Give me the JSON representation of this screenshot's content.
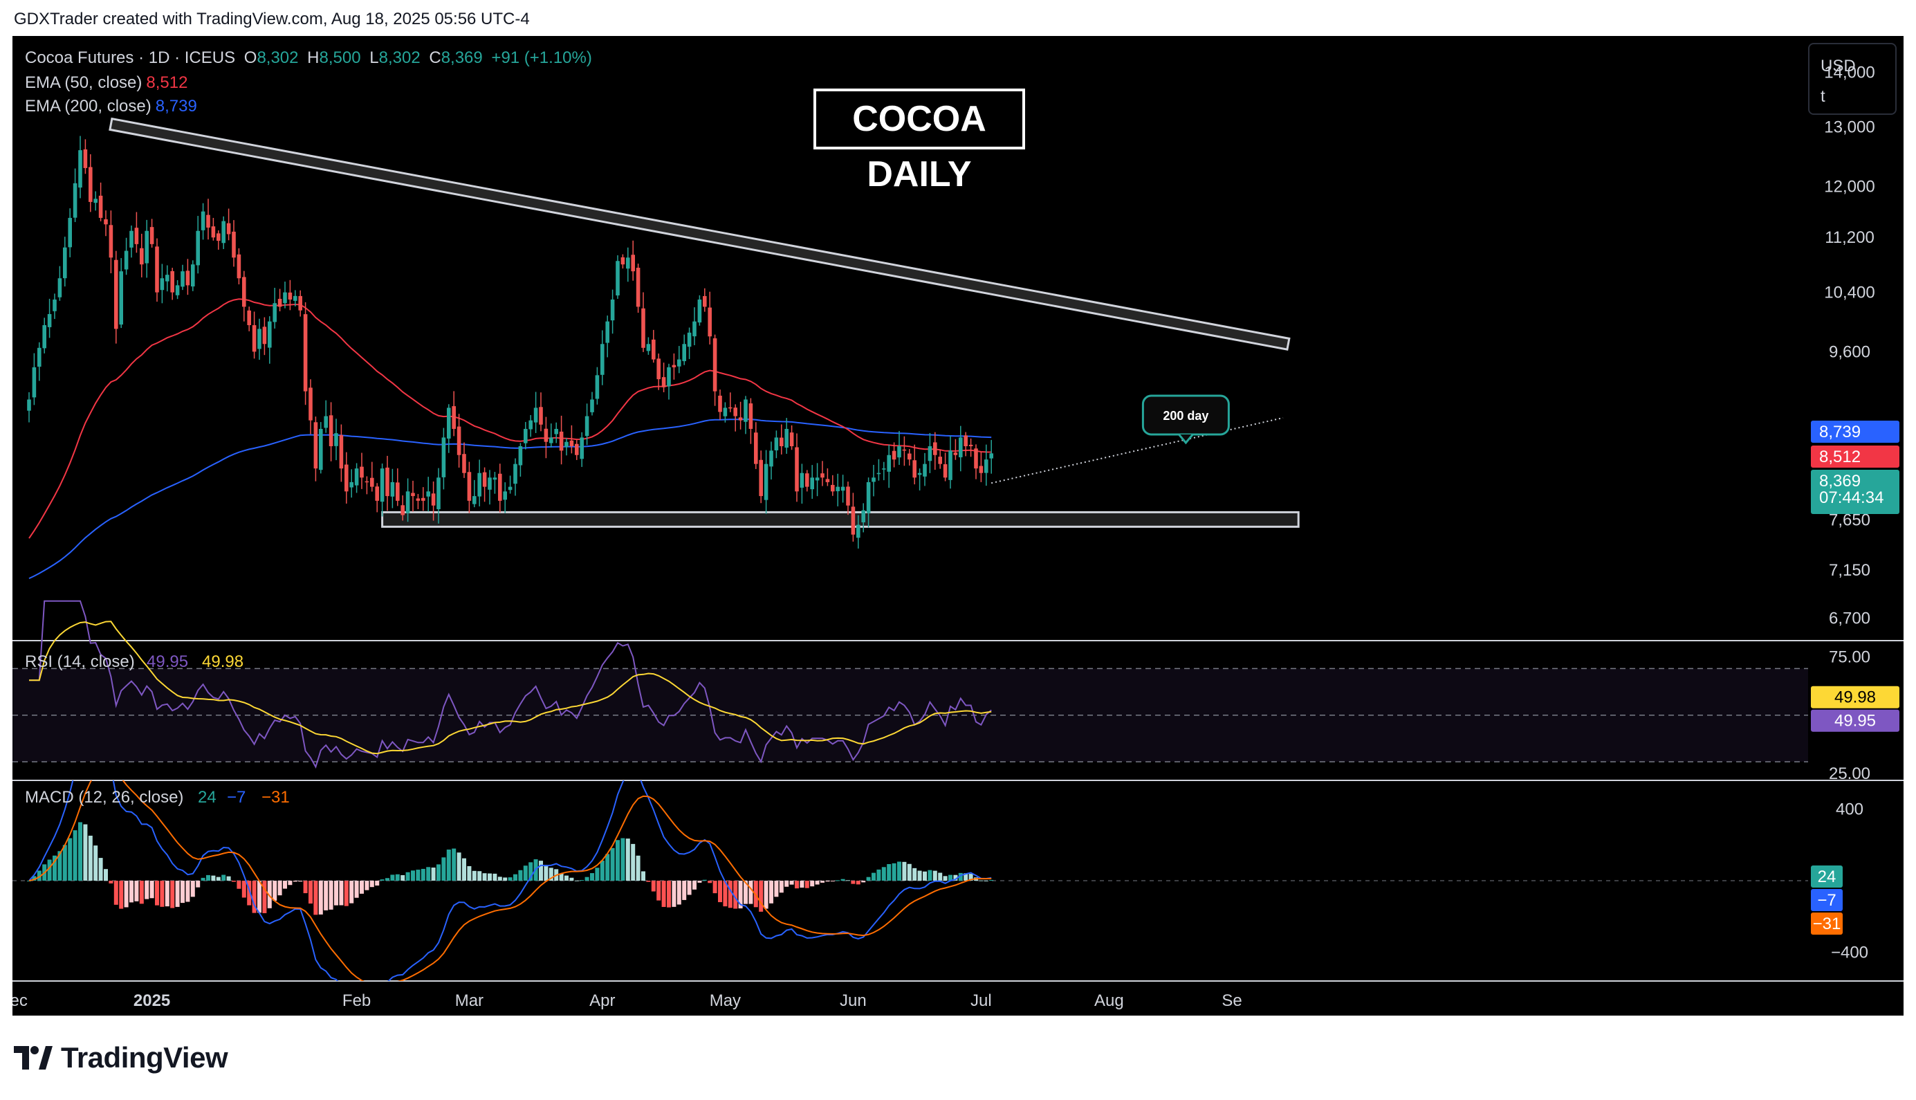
{
  "attribution": "GDXTrader created with TradingView.com, Aug 18, 2025 05:56 UTC-4",
  "chart_title": "COCOA DAILY",
  "brand": "TradingView",
  "currency_box": {
    "currency": "USD",
    "unit": "t"
  },
  "colors": {
    "up": "#26a69a",
    "down": "#ef5350",
    "ema50": "#f23645",
    "ema200": "#2962ff",
    "rsi": "#7e57c2",
    "rsi_ma": "#fdd835",
    "macd": "#2962ff",
    "signal": "#ff6d00",
    "background": "#000000"
  },
  "header": {
    "symbol": "Cocoa Futures · 1D · ICEUS",
    "o_label": "O",
    "o": "8,302",
    "h_label": "H",
    "h": "8,500",
    "l_label": "L",
    "l": "8,302",
    "c_label": "C",
    "c": "8,369",
    "change": "+91 (+1.10%)",
    "ema50_label": "EMA (50, close)",
    "ema50_value": "8,512",
    "ema200_label": "EMA (200, close)",
    "ema200_value": "8,739"
  },
  "annotations": {
    "callout": "200 day"
  },
  "chart_data": [
    {
      "type": "candlestick",
      "title": "Cocoa Futures · 1D · ICEUS",
      "y_scale": "log",
      "ylim": [
        6500,
        14700
      ],
      "y_ticks": [
        14000,
        13000,
        12000,
        11200,
        10400,
        9600,
        7650,
        7150,
        6700
      ],
      "y_tick_labels": [
        "14,000",
        "13,000",
        "12,000",
        "11,200",
        "10,400",
        "9,600",
        "7,650",
        "7,150",
        "6,700"
      ],
      "x_labels": [
        "ec",
        "2025",
        "Feb",
        "Mar",
        "Apr",
        "May",
        "Jun",
        "Jul",
        "Aug",
        "Se"
      ],
      "close": [
        9000,
        9400,
        9650,
        9950,
        10100,
        10300,
        10600,
        11050,
        11500,
        12050,
        12600,
        12300,
        11750,
        11800,
        11500,
        11400,
        10900,
        9900,
        10700,
        11000,
        11300,
        11100,
        10800,
        11300,
        11100,
        10400,
        10600,
        10650,
        10400,
        10500,
        10700,
        10500,
        10800,
        11300,
        11600,
        11350,
        11200,
        11150,
        11450,
        11250,
        10900,
        10600,
        10200,
        9950,
        9600,
        9900,
        9700,
        10000,
        10250,
        10200,
        10400,
        10300,
        10350,
        10150,
        9100,
        8750,
        8200,
        8650,
        8800,
        8450,
        8600,
        8200,
        7950,
        8050,
        8200,
        8100,
        8050,
        8000,
        7850,
        8200,
        7900,
        8050,
        7850,
        7700,
        7950,
        7900,
        7850,
        7850,
        7950,
        7800,
        8100,
        8550,
        8900,
        8650,
        8350,
        8150,
        7850,
        7900,
        8150,
        8000,
        8100,
        8100,
        7850,
        7950,
        8000,
        8250,
        8450,
        8650,
        8750,
        8900,
        8700,
        8500,
        8550,
        8650,
        8400,
        8500,
        8450,
        8350,
        8550,
        8800,
        9000,
        9300,
        9700,
        10000,
        10300,
        10850,
        10800,
        10900,
        10700,
        10200,
        9650,
        9700,
        9500,
        9250,
        9150,
        9400,
        9400,
        9500,
        9700,
        9850,
        10000,
        10300,
        10200,
        9800,
        9100,
        8850,
        8900,
        8900,
        8800,
        8750,
        9000,
        8650,
        8250,
        7900,
        8250,
        8400,
        8550,
        8450,
        8650,
        8450,
        7950,
        8150,
        8000,
        8100,
        8100,
        8100,
        8050,
        7950,
        8000,
        8000,
        7800,
        7500,
        7600,
        7750,
        8050,
        8100,
        8150,
        8200,
        8350,
        8300,
        8450,
        8400,
        8300,
        8100,
        8150,
        8250,
        8450,
        8350,
        8250,
        8100,
        8400,
        8350,
        8550,
        8450,
        8450,
        8200,
        8150,
        8300,
        8369
      ],
      "ema50_last": 8512,
      "ema200_last": 8739,
      "last_price": 8369,
      "price_tags": [
        {
          "label": "8,739",
          "value": 8739,
          "kind": "ema200"
        },
        {
          "label": "8,512",
          "value": 8512,
          "kind": "ema50"
        },
        {
          "label": "8,369",
          "value": 8369,
          "kind": "last"
        }
      ],
      "countdown": "07:44:34",
      "resistance_line": {
        "from": {
          "day": 16,
          "price": 13050
        },
        "to": {
          "day": 246,
          "price": 9700
        }
      },
      "support_band": {
        "from_day": 69,
        "to_day": 248,
        "low": 7580,
        "high": 7730
      },
      "rising_trendline": {
        "from": {
          "day": 188,
          "price": 8040
        },
        "to": {
          "day": 245,
          "price": 8780
        }
      }
    },
    {
      "type": "line",
      "title": "RSI (14, close)",
      "legend": {
        "label": "RSI (14, close)",
        "rsi": "49.95",
        "ma": "49.98"
      },
      "ylim": [
        22,
        82
      ],
      "y_ticks": [
        75,
        50,
        25
      ],
      "y_tick_labels": [
        "75.00",
        "",
        "25.00"
      ],
      "bands": [
        70,
        50,
        30
      ],
      "series": [
        {
          "name": "RSI",
          "last": 49.95
        },
        {
          "name": "RSI-based MA",
          "last": 49.98
        }
      ],
      "tags": [
        {
          "label": "49.98",
          "value": 49.98
        },
        {
          "label": "49.95",
          "value": 49.95
        }
      ]
    },
    {
      "type": "bar",
      "title": "MACD (12, 26, close)",
      "legend": {
        "label": "MACD (12, 26, close)",
        "hist": "24",
        "macd": "−7",
        "signal": "−31"
      },
      "ylim": [
        -560,
        560
      ],
      "y_ticks": [
        400,
        -400
      ],
      "y_tick_labels": [
        "400",
        "−400"
      ],
      "series": [
        {
          "name": "Histogram",
          "last": 24
        },
        {
          "name": "MACD",
          "last": -7
        },
        {
          "name": "Signal",
          "last": -31
        }
      ],
      "tags": [
        {
          "label": "24",
          "value": 24
        },
        {
          "label": "−7",
          "value": -7
        },
        {
          "label": "−31",
          "value": -31
        }
      ]
    }
  ]
}
